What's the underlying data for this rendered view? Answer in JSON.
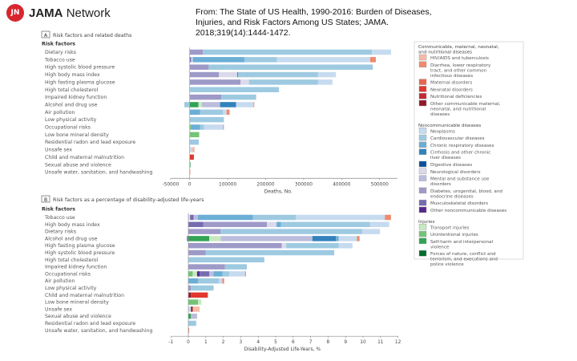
{
  "header": {
    "logo_mark": "JN",
    "logo_brand": "JAMA",
    "logo_rest": "Network",
    "title": "From: The State of US Health, 1990-2016: Burden of Diseases, Injuries, and Risk Factors Among US States; JAMA. 2018;319(14):1444-1472."
  },
  "colors": {
    "hiv": "#f5bba7",
    "diarrhea": "#f0896e",
    "maternal": "#e8664f",
    "neonatal": "#e0382e",
    "nutritional": "#c22a35",
    "other_cmnn": "#8e1a28",
    "neoplasms": "#c6dbef",
    "cardio": "#9ecae1",
    "chronic_resp": "#6baed6",
    "cirrhosis": "#3182bd",
    "digestive": "#08519c",
    "neuro": "#dadaeb",
    "mental": "#bcbddc",
    "diabetes": "#9e9ac8",
    "msk": "#756bb1",
    "other_ncd": "#54278f",
    "transport": "#c7e9c0",
    "unintentional": "#74c476",
    "selfharm": "#31a354",
    "forces": "#006d2c"
  },
  "legend": {
    "groups": [
      {
        "title": "Communicable, maternal, neonatal, and nutritional diseases",
        "items": [
          {
            "key": "hiv",
            "label": "HIV/AIDS and tuberculosis"
          },
          {
            "key": "diarrhea",
            "label": "Diarrhea, lower respiratory tract, and other common infectious diseases"
          },
          {
            "key": "maternal",
            "label": "Maternal disorders"
          },
          {
            "key": "neonatal",
            "label": "Neonatal disorders"
          },
          {
            "key": "nutritional",
            "label": "Nutritional deficiencies"
          },
          {
            "key": "other_cmnn",
            "label": "Other communicable maternal, neonatal, and nutritional diseases"
          }
        ]
      },
      {
        "title": "Noncommunicable diseases",
        "items": [
          {
            "key": "neoplasms",
            "label": "Neoplasms"
          },
          {
            "key": "cardio",
            "label": "Cardiovascular diseases"
          },
          {
            "key": "chronic_resp",
            "label": "Chronic respiratory diseases"
          },
          {
            "key": "cirrhosis",
            "label": "Cirrhosis and other chronic liver diseases"
          },
          {
            "key": "digestive",
            "label": "Digestive diseases"
          },
          {
            "key": "neuro",
            "label": "Neurological disorders"
          },
          {
            "key": "mental",
            "label": "Mental and substance use disorders"
          },
          {
            "key": "diabetes",
            "label": "Diabetes, urogenital, blood, and endocrine diseases"
          },
          {
            "key": "msk",
            "label": "Musculoskeletal disorders"
          },
          {
            "key": "other_ncd",
            "label": "Other noncommunicable diseases"
          }
        ]
      },
      {
        "title": "Injuries",
        "items": [
          {
            "key": "transport",
            "label": "Transport injuries"
          },
          {
            "key": "unintentional",
            "label": "Unintentional injuries"
          },
          {
            "key": "selfharm",
            "label": "Self-harm and interpersonal violence"
          },
          {
            "key": "forces",
            "label": "Forces of nature, conflict and terrorism, and executions and police violence"
          }
        ]
      }
    ]
  },
  "chart_data": [
    {
      "type": "bar",
      "orientation": "horizontal",
      "stacked": true,
      "panel_label": "A",
      "title": "Risk factors and related deaths",
      "category_header": "Risk factors",
      "xlabel": "Deaths, No.",
      "xlim": [
        -50000,
        550000
      ],
      "xticks": [
        -50000,
        0,
        100000,
        200000,
        300000,
        400000,
        500000
      ],
      "rows": [
        {
          "label": "Dietary risks",
          "segments": [
            [
              "diabetes",
              35000
            ],
            [
              "cardio",
              445000
            ],
            [
              "neoplasms",
              50000
            ]
          ]
        },
        {
          "label": "Tobacco use",
          "segments": [
            [
              "msk",
              4000
            ],
            [
              "neuro",
              4000
            ],
            [
              "chronic_resp",
              136000
            ],
            [
              "cardio",
              86000
            ],
            [
              "neoplasms",
              245000
            ],
            [
              "diarrhea",
              15000
            ]
          ]
        },
        {
          "label": "High systolic blood pressure",
          "segments": [
            [
              "diabetes",
              50000
            ],
            [
              "cardio",
              432000
            ]
          ]
        },
        {
          "label": "High body mass index",
          "segments": [
            [
              "diabetes",
              77000
            ],
            [
              "neuro",
              48000
            ],
            [
              "cirrhosis",
              2000
            ],
            [
              "cardio",
              211000
            ],
            [
              "neoplasms",
              47000
            ]
          ]
        },
        {
          "label": "High fasting plasma glucose",
          "segments": [
            [
              "diabetes",
              134000
            ],
            [
              "neuro",
              22000
            ],
            [
              "cardio",
              182000
            ],
            [
              "neoplasms",
              38000
            ]
          ]
        },
        {
          "label": "High total cholesterol",
          "segments": [
            [
              "cardio",
              235000
            ]
          ]
        },
        {
          "label": "Impaired kidney function",
          "segments": [
            [
              "diabetes",
              83000
            ],
            [
              "cardio",
              92000
            ]
          ]
        },
        {
          "label": "Alcohol and drug use",
          "negative": [
            [
              "cardio",
              -14000
            ]
          ],
          "segments": [
            [
              "selfharm",
              23000
            ],
            [
              "transport",
              9000
            ],
            [
              "mental",
              48000
            ],
            [
              "cirrhosis",
              42000
            ],
            [
              "neoplasms",
              46000
            ],
            [
              "diarrhea",
              2000
            ]
          ]
        },
        {
          "label": "Air pollution",
          "segments": [
            [
              "chronic_resp",
              27000
            ],
            [
              "cardio",
              61000
            ],
            [
              "neoplasms",
              9000
            ],
            [
              "diarrhea",
              8000
            ]
          ]
        },
        {
          "label": "Low physical activity",
          "segments": [
            [
              "cardio",
              90000
            ]
          ]
        },
        {
          "label": "Occupational risks",
          "segments": [
            [
              "unintentional",
              4000
            ],
            [
              "chronic_resp",
              23000
            ],
            [
              "cardio",
              11000
            ],
            [
              "neoplasms",
              50000
            ],
            [
              "diarrhea",
              2000
            ]
          ]
        },
        {
          "label": "Low bone mineral density",
          "segments": [
            [
              "unintentional",
              25000
            ]
          ]
        },
        {
          "label": "Residential radon and lead exposure",
          "segments": [
            [
              "cardio",
              24000
            ]
          ]
        },
        {
          "label": "Unsafe sex",
          "segments": [
            [
              "neoplasms",
              7000
            ],
            [
              "hiv",
              6000
            ]
          ]
        },
        {
          "label": "Child and maternal malnutrition",
          "segments": [
            [
              "neonatal",
              11000
            ]
          ]
        },
        {
          "label": "Sexual abuse and violence",
          "segments": [
            [
              "selfharm",
              2000
            ]
          ]
        },
        {
          "label": "Unsafe water, sanitation, and handwashing",
          "segments": [
            [
              "diarrhea",
              1500
            ]
          ]
        }
      ]
    },
    {
      "type": "bar",
      "orientation": "horizontal",
      "stacked": true,
      "panel_label": "B",
      "title": "Risk factors as a percentage of disability-adjusted life-years",
      "category_header": "Risk factors",
      "xlabel": "Disability-Adjusted Life-Years, %",
      "xlim": [
        -1,
        12.5
      ],
      "xticks": [
        -1,
        0,
        1,
        2,
        3,
        4,
        5,
        6,
        7,
        8,
        9,
        10,
        11,
        12
      ],
      "rows": [
        {
          "label": "Tobacco use",
          "segments": [
            [
              "neuro",
              0.1
            ],
            [
              "msk",
              0.2
            ],
            [
              "mental",
              0.25
            ],
            [
              "chronic_resp",
              3.15
            ],
            [
              "cardio",
              2.45
            ],
            [
              "neoplasms",
              5.1
            ],
            [
              "diarrhea",
              0.35
            ]
          ]
        },
        {
          "label": "High body mass index",
          "segments": [
            [
              "msk",
              0.85
            ],
            [
              "diabetes",
              3.65
            ],
            [
              "neuro",
              0.55
            ],
            [
              "chronic_resp",
              0.25
            ],
            [
              "cardio",
              5.1
            ],
            [
              "neoplasms",
              1.1
            ]
          ]
        },
        {
          "label": "Dietary risks",
          "segments": [
            [
              "diabetes",
              1.85
            ],
            [
              "cardio",
              8.1
            ],
            [
              "neoplasms",
              1.02
            ]
          ]
        },
        {
          "label": "Alcohol and drug use",
          "negative": [
            [
              "msk",
              -0.08
            ]
          ],
          "segments": [
            [
              "selfharm",
              1.2
            ],
            [
              "transport",
              0.65
            ],
            [
              "mental",
              5.25
            ],
            [
              "cirrhosis",
              1.35
            ],
            [
              "chronic_resp",
              0.15
            ],
            [
              "neoplasms",
              1.05
            ],
            [
              "diarrhea",
              0.15
            ]
          ]
        },
        {
          "label": "High fasting plasma glucose",
          "segments": [
            [
              "diabetes",
              5.35
            ],
            [
              "neuro",
              0.25
            ],
            [
              "cardio",
              3.0
            ],
            [
              "neoplasms",
              0.8
            ]
          ]
        },
        {
          "label": "High systolic blood pressure",
          "segments": [
            [
              "diabetes",
              1.0
            ],
            [
              "cardio",
              7.35
            ]
          ]
        },
        {
          "label": "High total cholesterol",
          "segments": [
            [
              "cardio",
              4.35
            ]
          ]
        },
        {
          "label": "Impaired kidney function",
          "segments": [
            [
              "diabetes",
              2.1
            ],
            [
              "cardio",
              1.25
            ]
          ]
        },
        {
          "label": "Occupational risks",
          "segments": [
            [
              "unintentional",
              0.25
            ],
            [
              "transport",
              0.25
            ],
            [
              "other_ncd",
              0.15
            ],
            [
              "msk",
              0.55
            ],
            [
              "mental",
              0.25
            ],
            [
              "chronic_resp",
              0.5
            ],
            [
              "cardio",
              0.4
            ],
            [
              "neoplasms",
              0.9
            ],
            [
              "diarrhea",
              0.05
            ]
          ]
        },
        {
          "label": "Air pollution",
          "segments": [
            [
              "chronic_resp",
              0.55
            ],
            [
              "cardio",
              1.2
            ],
            [
              "neoplasms",
              0.2
            ],
            [
              "diarrhea",
              0.1
            ]
          ]
        },
        {
          "label": "Low physical activity",
          "segments": [
            [
              "diabetes",
              0.15
            ],
            [
              "cardio",
              1.3
            ]
          ]
        },
        {
          "label": "Child and maternal malnutrition",
          "segments": [
            [
              "other_cmnn",
              0.15
            ],
            [
              "neonatal",
              0.95
            ],
            [
              "diarrhea",
              0.03
            ]
          ]
        },
        {
          "label": "Low bone mineral density",
          "segments": [
            [
              "unintentional",
              0.55
            ],
            [
              "transport",
              0.2
            ]
          ]
        },
        {
          "label": "Unsafe sex",
          "segments": [
            [
              "neoplasms",
              0.15
            ],
            [
              "other_cmnn",
              0.1
            ],
            [
              "hiv",
              0.4
            ]
          ]
        },
        {
          "label": "Sexual abuse and violence",
          "segments": [
            [
              "selfharm",
              0.15
            ],
            [
              "mental",
              0.35
            ]
          ]
        },
        {
          "label": "Residential radon and lead exposure",
          "segments": [
            [
              "cardio",
              0.45
            ]
          ]
        },
        {
          "label": "Unsafe water, sanitation, and handwashing",
          "segments": [
            [
              "diarrhea",
              0.05
            ]
          ]
        }
      ]
    }
  ]
}
